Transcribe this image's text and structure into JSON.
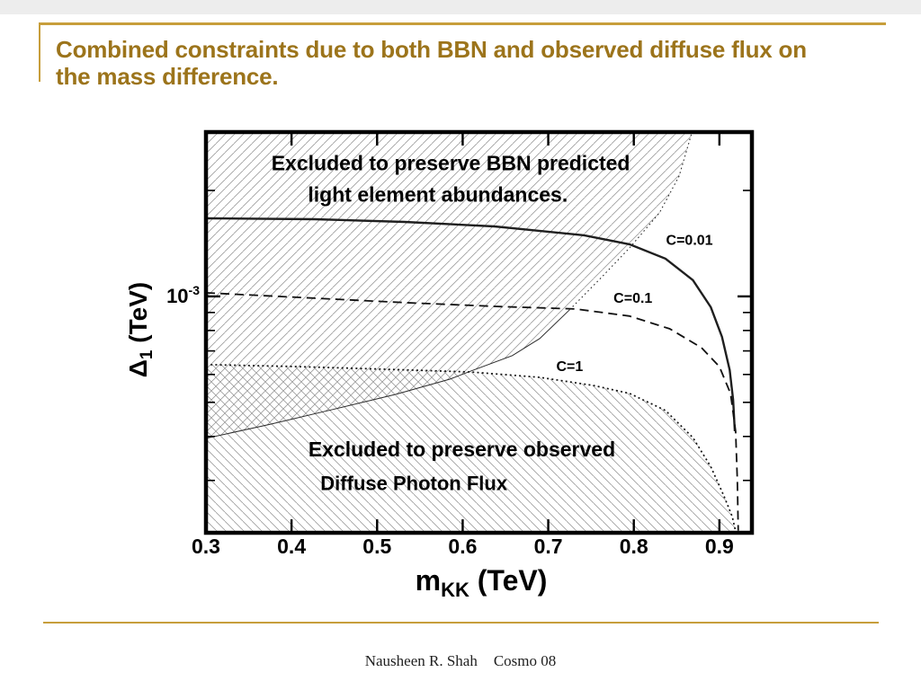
{
  "slide": {
    "title_line1": "Combined constraints due to both BBN and observed diffuse flux on",
    "title_line2": "the mass difference.",
    "footer": {
      "author": "Nausheen R. Shah",
      "event": "Cosmo 08"
    },
    "colors": {
      "accent_gold": "#C79E3B",
      "title_gold": "#9C741B",
      "top_strip": "#ededed"
    }
  },
  "chart_data": {
    "type": "line",
    "title": "",
    "xlabel": {
      "base": "m",
      "sub": "KK",
      "rest": " (TeV)"
    },
    "ylabel": {
      "base": "Δ",
      "sub": "1",
      "rest": " (TeV)"
    },
    "x_axis": {
      "scale": "linear",
      "min": 0.3,
      "max": 0.938,
      "major_ticks": [
        0.3,
        0.4,
        0.5,
        0.6,
        0.7,
        0.8,
        0.9
      ],
      "tick_labels": [
        "0.3",
        "0.4",
        "0.5",
        "0.6",
        "0.7",
        "0.8",
        "0.9"
      ]
    },
    "y_axis": {
      "scale": "log",
      "min": 0.000213,
      "max": 0.00293,
      "major_ticks": [
        0.001
      ],
      "major_tick_label": {
        "base": "10",
        "sup": "-3"
      },
      "minor_ticks": [
        0.002,
        0.0009,
        0.0008,
        0.0007,
        0.0006,
        0.0005,
        0.0004,
        0.0003
      ]
    },
    "grid": false,
    "legend": "none",
    "series": [
      {
        "id": "c001",
        "label": "C=0.01",
        "style": "solid",
        "width": 2.4,
        "color": "#1f1f1f",
        "points": [
          [
            0.3,
            0.001667
          ],
          [
            0.427,
            0.001657
          ],
          [
            0.532,
            0.001628
          ],
          [
            0.637,
            0.001581
          ],
          [
            0.742,
            0.001491
          ],
          [
            0.795,
            0.001406
          ],
          [
            0.837,
            0.00128
          ],
          [
            0.869,
            0.001112
          ],
          [
            0.89,
            0.000932
          ],
          [
            0.903,
            0.000768
          ],
          [
            0.912,
            0.000618
          ],
          [
            0.916,
            0.000509
          ],
          [
            0.918,
            0.000414
          ]
        ]
      },
      {
        "id": "c01",
        "label": "C=0.1",
        "style": "dashed",
        "width": 1.8,
        "color": "#111111",
        "points": [
          [
            0.3,
            0.001024
          ],
          [
            0.427,
            0.000988
          ],
          [
            0.532,
            0.00096
          ],
          [
            0.637,
            0.000937
          ],
          [
            0.732,
            0.000921
          ],
          [
            0.795,
            0.000879
          ],
          [
            0.842,
            0.000809
          ],
          [
            0.879,
            0.000715
          ],
          [
            0.9,
            0.000632
          ],
          [
            0.913,
            0.00053
          ],
          [
            0.919,
            0.000414
          ],
          [
            0.921,
            0.0003
          ],
          [
            0.922,
            0.000216
          ]
        ]
      },
      {
        "id": "c1",
        "label": "C=1",
        "style": "dotted",
        "width": 1.7,
        "color": "#111111",
        "points": [
          [
            0.3,
            0.00064
          ],
          [
            0.406,
            0.000632
          ],
          [
            0.511,
            0.000621
          ],
          [
            0.609,
            0.00061
          ],
          [
            0.69,
            0.000589
          ],
          [
            0.753,
            0.000558
          ],
          [
            0.795,
            0.00053
          ],
          [
            0.837,
            0.000474
          ],
          [
            0.869,
            0.000397
          ],
          [
            0.89,
            0.000328
          ],
          [
            0.905,
            0.000272
          ],
          [
            0.915,
            0.000237
          ],
          [
            0.919,
            0.000215
          ]
        ]
      },
      {
        "id": "bbn-lower",
        "label": "BBN exclusion boundary (lower)",
        "style": "solid",
        "width": 1.0,
        "color": "#2a2a2a",
        "points": [
          [
            0.3,
            0.000395
          ],
          [
            0.375,
            0.000433
          ],
          [
            0.448,
            0.000477
          ],
          [
            0.522,
            0.000527
          ],
          [
            0.585,
            0.000582
          ],
          [
            0.609,
            0.000613
          ],
          [
            0.658,
            0.000679
          ],
          [
            0.69,
            0.000759
          ],
          [
            0.725,
            0.000916
          ]
        ]
      },
      {
        "id": "bbn-upper",
        "label": "BBN exclusion boundary (upper)",
        "style": "fine-dotted",
        "width": 1.1,
        "color": "#2a2a2a",
        "points": [
          [
            0.725,
            0.000916
          ],
          [
            0.761,
            0.001125
          ],
          [
            0.795,
            0.001373
          ],
          [
            0.83,
            0.001727
          ],
          [
            0.853,
            0.002198
          ],
          [
            0.868,
            0.00293
          ]
        ]
      }
    ],
    "regions": [
      {
        "id": "bbn-excluded",
        "hatch": "forward",
        "series": [
          "bbn-lower",
          "bbn-upper"
        ],
        "side": "above",
        "label": "Excluded to preserve BBN predicted light element abundances."
      },
      {
        "id": "photon-excluded",
        "hatch": "backward",
        "series": [
          "c1"
        ],
        "side": "below",
        "label": "Excluded to preserve observed Diffuse Photon Flux"
      }
    ],
    "annotations": [
      {
        "id": "bbn-text-1",
        "text": "Excluded to preserve BBN predicted",
        "x": 0.586,
        "y": 0.00239,
        "size": 23
      },
      {
        "id": "bbn-text-2",
        "text": "light element abundances.",
        "x": 0.571,
        "y": 0.00195,
        "size": 23
      },
      {
        "id": "label-c001",
        "text": "C=0.01",
        "x": 0.865,
        "y": 0.00145,
        "size": 16
      },
      {
        "id": "label-c01",
        "text": "C=0.1",
        "x": 0.799,
        "y": 0.00099,
        "size": 16
      },
      {
        "id": "label-c1",
        "text": "C=1",
        "x": 0.725,
        "y": 0.000635,
        "size": 16
      },
      {
        "id": "photon-text-1",
        "text": "Excluded to preserve observed",
        "x": 0.599,
        "y": 0.000368,
        "size": 23
      },
      {
        "id": "photon-text-2",
        "text": "Diffuse Photon Flux",
        "x": 0.543,
        "y": 0.000295,
        "size": 22
      }
    ]
  }
}
